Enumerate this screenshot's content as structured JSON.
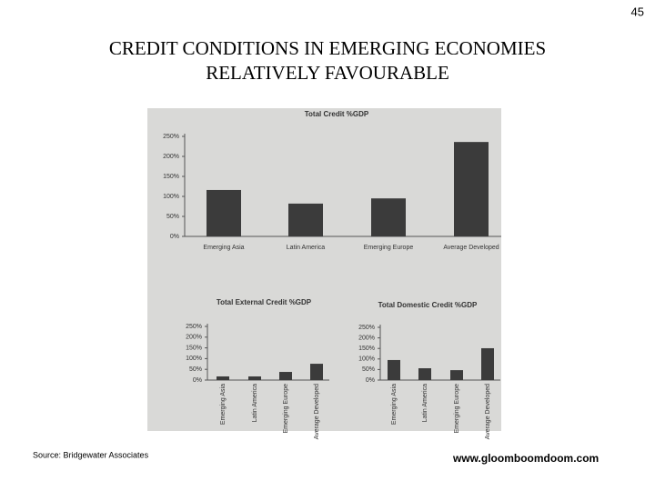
{
  "page_number": "45",
  "title_lines": [
    "CREDIT  CONDITIONS  IN  EMERGING  ECONOMIES",
    "RELATIVELY  FAVOURABLE"
  ],
  "source": "Source:  Bridgewater Associates",
  "website": "www.gloomboomdoom.com",
  "chart_data": [
    {
      "type": "bar",
      "title": "Total Credit %GDP",
      "categories": [
        "Emerging Asia",
        "Latin America",
        "Emerging Europe",
        "Average Developed"
      ],
      "values": [
        116,
        82,
        95,
        236
      ],
      "color": "#3b3b3b",
      "ylim": [
        0,
        250
      ],
      "yticks": [
        {
          "value": 0,
          "label": "0%"
        },
        {
          "value": 50,
          "label": "50%"
        },
        {
          "value": 100,
          "label": "100%"
        },
        {
          "value": 150,
          "label": "150%"
        },
        {
          "value": 200,
          "label": "200%"
        },
        {
          "value": 250,
          "label": "250%"
        }
      ]
    },
    {
      "type": "bar",
      "title": "Total External Credit %GDP",
      "categories": [
        "Emerging Asia",
        "Latin America",
        "Emerging Europe",
        "Average Developed"
      ],
      "values": [
        17,
        17,
        38,
        76
      ],
      "color": "#3b3b3b",
      "ylim": [
        0,
        250
      ],
      "yticks": [
        {
          "value": 0,
          "label": "0%"
        },
        {
          "value": 50,
          "label": "50%"
        },
        {
          "value": 100,
          "label": "100%"
        },
        {
          "value": 150,
          "label": "150%"
        },
        {
          "value": 200,
          "label": "200%"
        },
        {
          "value": 250,
          "label": "250%"
        }
      ]
    },
    {
      "type": "bar",
      "title": "Total Domestic Credit %GDP",
      "categories": [
        "Emerging Asia",
        "Latin America",
        "Emerging Europe",
        "Average Developed"
      ],
      "values": [
        95,
        56,
        47,
        151
      ],
      "color": "#3b3b3b",
      "ylim": [
        0,
        250
      ],
      "yticks": [
        {
          "value": 0,
          "label": "0%"
        },
        {
          "value": 50,
          "label": "50%"
        },
        {
          "value": 100,
          "label": "100%"
        },
        {
          "value": 150,
          "label": "150%"
        },
        {
          "value": 200,
          "label": "200%"
        },
        {
          "value": 250,
          "label": "250%"
        }
      ]
    }
  ]
}
